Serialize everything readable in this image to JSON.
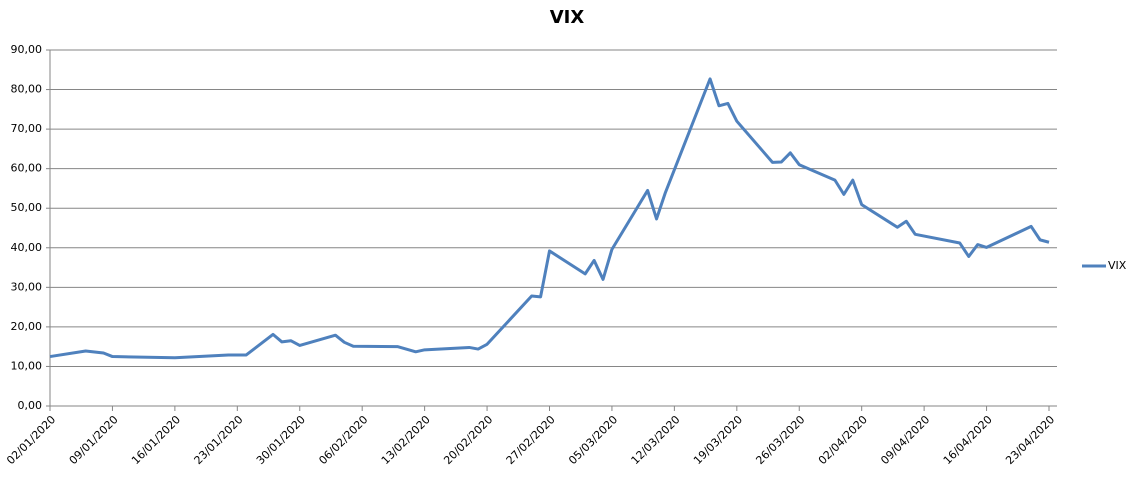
{
  "chart_data": {
    "type": "line",
    "title": "VIX",
    "x": [
      "02/01/2020",
      "06/01/2020",
      "08/01/2020",
      "09/01/2020",
      "16/01/2020",
      "22/01/2020",
      "24/01/2020",
      "27/01/2020",
      "28/01/2020",
      "29/01/2020",
      "30/01/2020",
      "03/02/2020",
      "04/02/2020",
      "05/02/2020",
      "10/02/2020",
      "12/02/2020",
      "13/02/2020",
      "18/02/2020",
      "19/02/2020",
      "20/02/2020",
      "25/02/2020",
      "26/02/2020",
      "27/02/2020",
      "02/03/2020",
      "03/03/2020",
      "04/03/2020",
      "05/03/2020",
      "09/03/2020",
      "10/03/2020",
      "11/03/2020",
      "16/03/2020",
      "17/03/2020",
      "18/03/2020",
      "19/03/2020",
      "23/03/2020",
      "24/03/2020",
      "25/03/2020",
      "26/03/2020",
      "30/03/2020",
      "31/03/2020",
      "01/04/2020",
      "02/04/2020",
      "06/04/2020",
      "07/04/2020",
      "08/04/2020",
      "13/04/2020",
      "14/04/2020",
      "15/04/2020",
      "16/04/2020",
      "21/04/2020",
      "22/04/2020",
      "23/04/2020"
    ],
    "series": [
      {
        "name": "VIX",
        "color": "#4f81bd",
        "values": [
          12.5,
          13.9,
          13.4,
          12.5,
          12.2,
          12.9,
          12.9,
          18.1,
          16.2,
          16.5,
          15.3,
          17.9,
          16.1,
          15.1,
          15.0,
          13.7,
          14.2,
          14.8,
          14.4,
          15.6,
          27.8,
          27.6,
          39.2,
          33.4,
          36.8,
          32.0,
          39.6,
          54.5,
          47.3,
          54.0,
          82.7,
          75.9,
          76.5,
          72.0,
          61.6,
          61.7,
          64.0,
          61.0,
          57.1,
          53.5,
          57.1,
          50.9,
          45.2,
          46.7,
          43.4,
          41.2,
          37.8,
          40.8,
          40.1,
          45.4,
          42.0,
          41.4
        ]
      }
    ],
    "xlim": [
      "02/01/2020",
      "23/04/2020"
    ],
    "xticks": [
      "02/01/2020",
      "09/01/2020",
      "16/01/2020",
      "23/01/2020",
      "30/01/2020",
      "06/02/2020",
      "13/02/2020",
      "20/02/2020",
      "27/02/2020",
      "05/03/2020",
      "12/03/2020",
      "19/03/2020",
      "26/03/2020",
      "02/04/2020",
      "09/04/2020",
      "16/04/2020",
      "23/04/2020"
    ],
    "ylim": [
      0,
      90
    ],
    "yticks": [
      {
        "value": 0,
        "label": "0,00"
      },
      {
        "value": 10,
        "label": "10,00"
      },
      {
        "value": 20,
        "label": "20,00"
      },
      {
        "value": 30,
        "label": "30,00"
      },
      {
        "value": 40,
        "label": "40,00"
      },
      {
        "value": 50,
        "label": "50,00"
      },
      {
        "value": 60,
        "label": "60,00"
      },
      {
        "value": 70,
        "label": "70,00"
      },
      {
        "value": 80,
        "label": "80,00"
      },
      {
        "value": 90,
        "label": "90,00"
      }
    ],
    "grid": true,
    "legend": "right"
  }
}
